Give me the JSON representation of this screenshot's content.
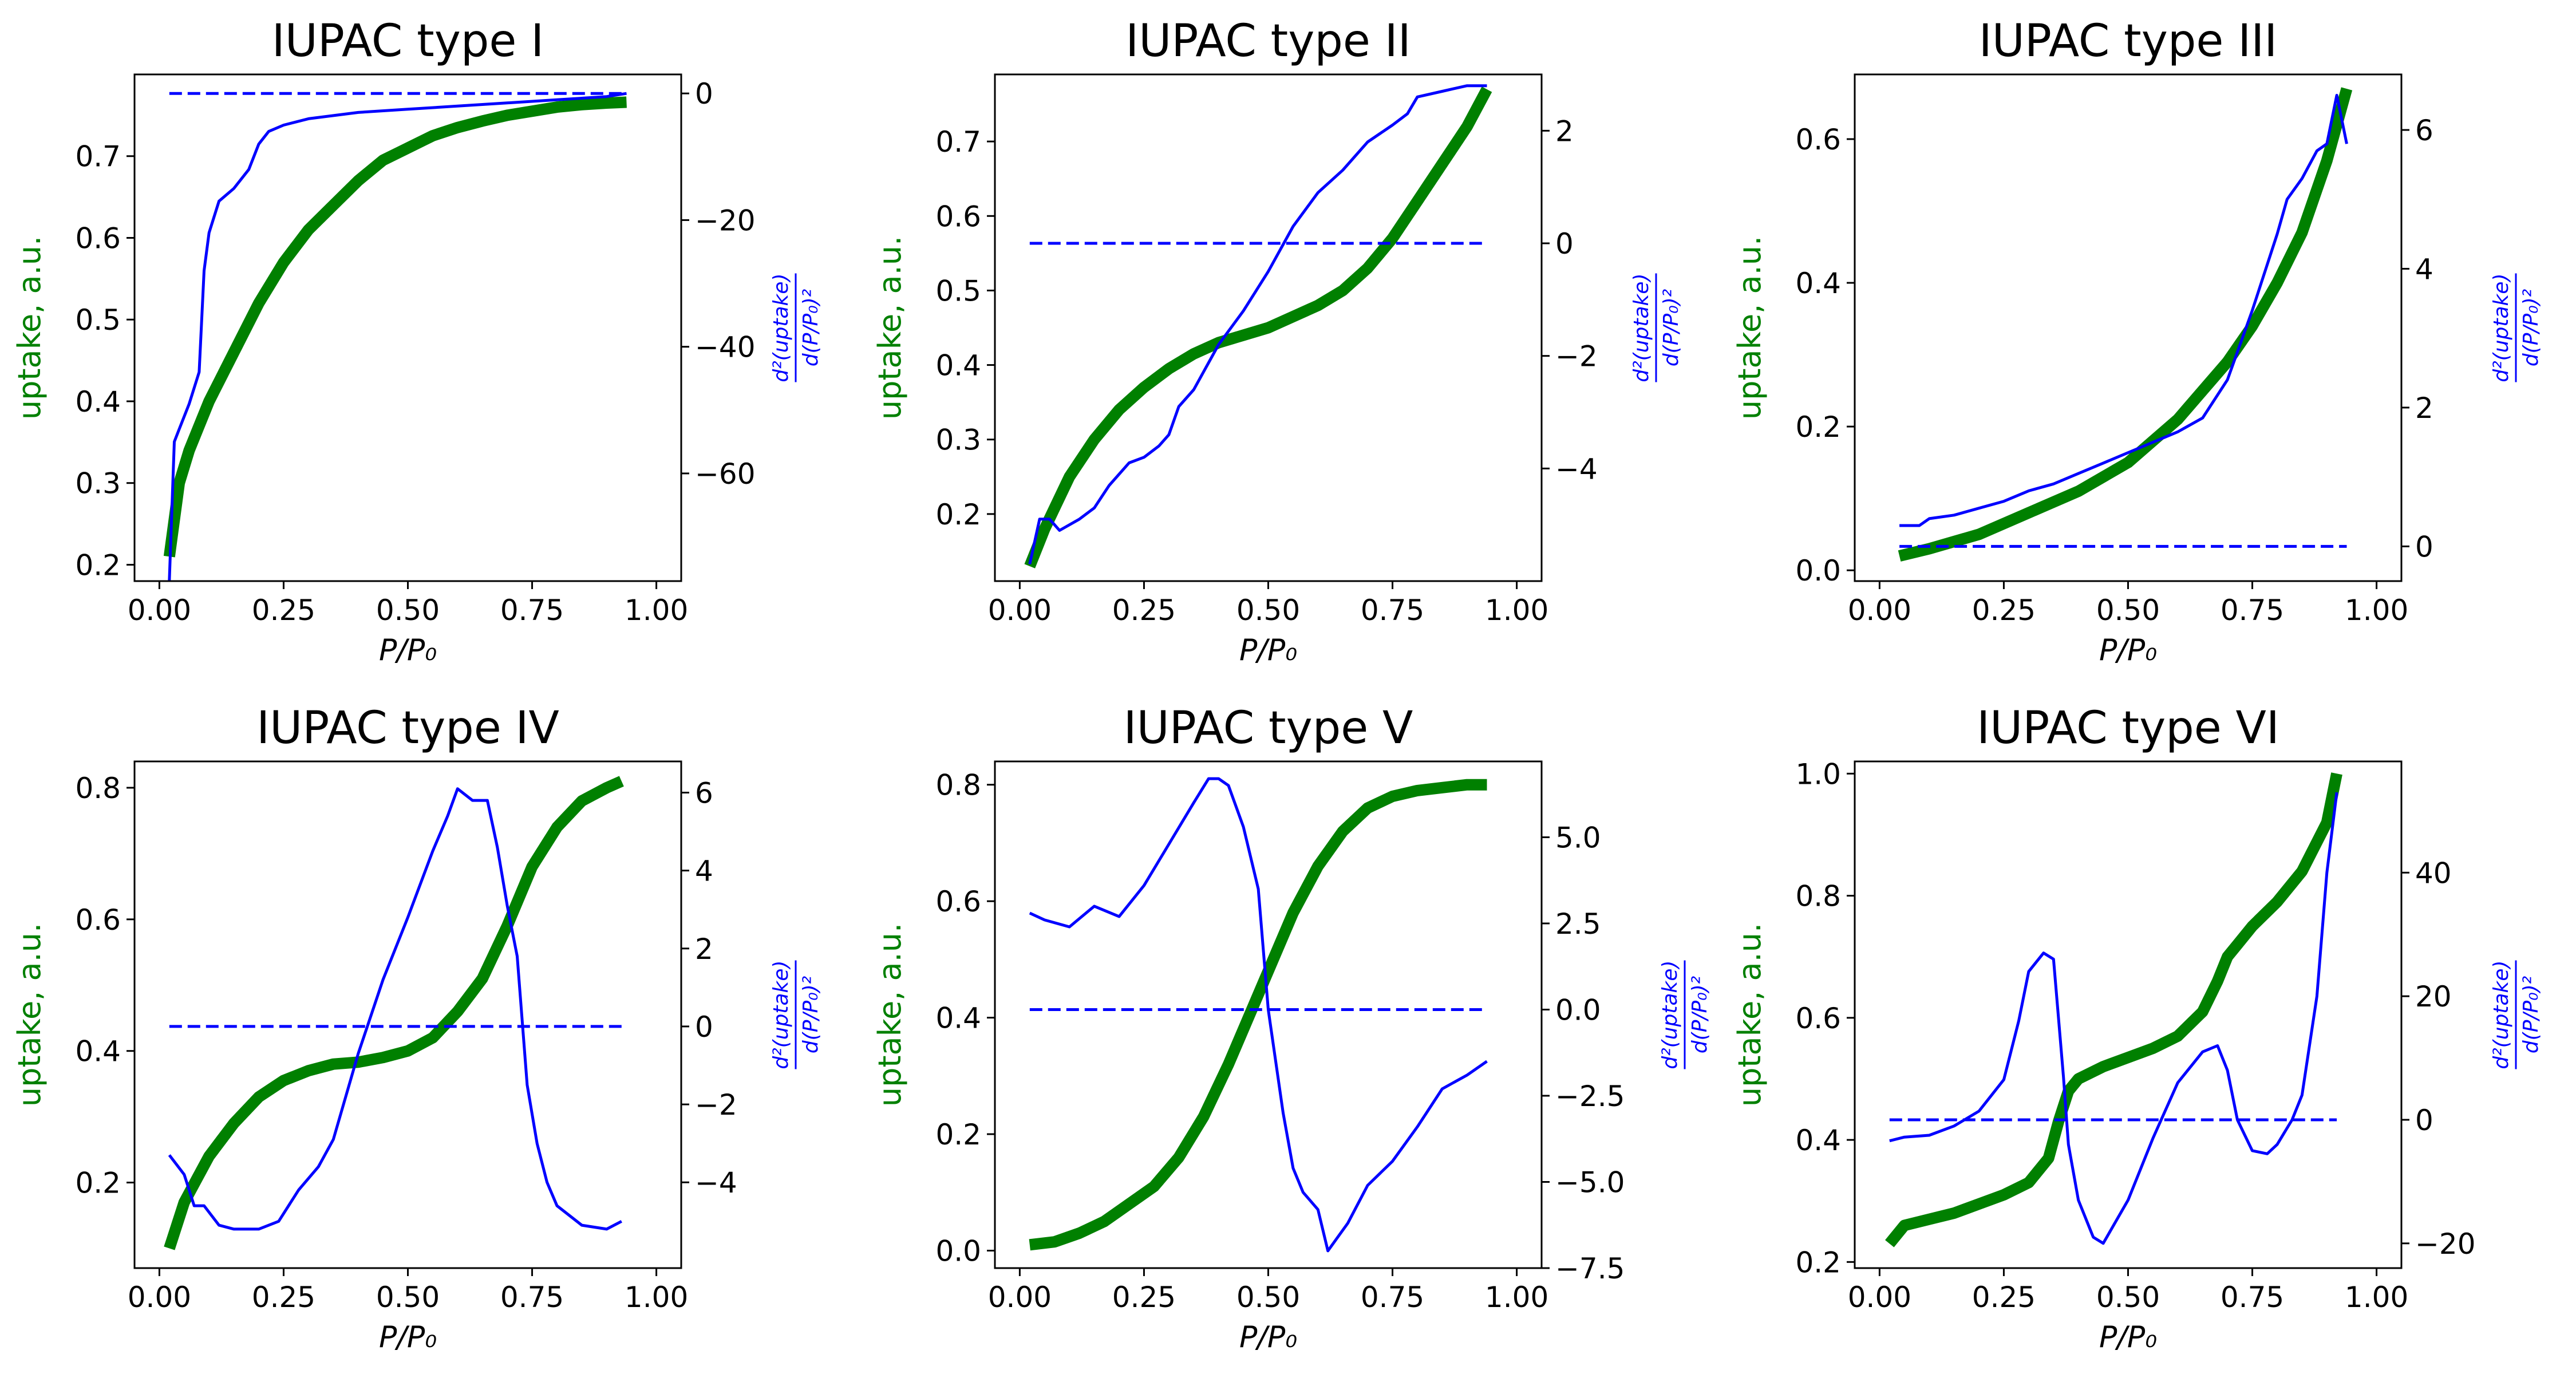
{
  "figure": {
    "left_axis_label": "uptake, a.u.",
    "right_axis_label_num": "d²(uptake)",
    "right_axis_label_den": "d(P/P₀)²",
    "x_axis_label": "P/P₀",
    "colors": {
      "uptake": "#008000",
      "second_derivative": "#0000ff",
      "zero_line": "#0000ff"
    }
  },
  "chart_data": [
    {
      "type": "line",
      "title": "IUPAC type I",
      "xlabel": "P/P₀",
      "ylabel": "uptake, a.u.",
      "ylabel_right": "d²(uptake)/d(P/P₀)²",
      "xlim": [
        -0.05,
        1.05
      ],
      "ylim": [
        0.18,
        0.8
      ],
      "ylim_right": [
        -77,
        3
      ],
      "xticks": [
        "0.00",
        "0.25",
        "0.50",
        "0.75",
        "1.00"
      ],
      "yticks": [
        "0.2",
        "0.3",
        "0.4",
        "0.5",
        "0.6",
        "0.7"
      ],
      "yticks_right": [
        "−60",
        "−40",
        "−20",
        "0"
      ],
      "series": [
        {
          "name": "uptake",
          "axis": "left",
          "x": [
            0.02,
            0.04,
            0.06,
            0.1,
            0.15,
            0.2,
            0.25,
            0.3,
            0.35,
            0.4,
            0.45,
            0.5,
            0.55,
            0.6,
            0.65,
            0.7,
            0.75,
            0.8,
            0.85,
            0.9,
            0.94
          ],
          "y": [
            0.21,
            0.3,
            0.34,
            0.4,
            0.46,
            0.52,
            0.57,
            0.61,
            0.64,
            0.67,
            0.695,
            0.71,
            0.725,
            0.735,
            0.743,
            0.75,
            0.755,
            0.76,
            0.763,
            0.765,
            0.766
          ]
        },
        {
          "name": "second derivative",
          "axis": "right",
          "x": [
            0.02,
            0.03,
            0.04,
            0.06,
            0.08,
            0.09,
            0.1,
            0.12,
            0.15,
            0.18,
            0.2,
            0.22,
            0.25,
            0.3,
            0.35,
            0.4,
            0.5,
            0.6,
            0.7,
            0.8,
            0.9,
            0.94
          ],
          "y": [
            -77,
            -55,
            -53,
            -49,
            -44,
            -28,
            -22,
            -17,
            -15,
            -12,
            -8,
            -6,
            -5,
            -4,
            -3.5,
            -3,
            -2.5,
            -2,
            -1.5,
            -1,
            -0.5,
            0
          ]
        },
        {
          "name": "zero",
          "axis": "right",
          "style": "dashed",
          "x": [
            0.02,
            0.94
          ],
          "y": [
            0,
            0
          ]
        }
      ]
    },
    {
      "type": "line",
      "title": "IUPAC type II",
      "xlabel": "P/P₀",
      "ylabel": "uptake, a.u.",
      "ylabel_right": "d²(uptake)/d(P/P₀)²",
      "xlim": [
        -0.05,
        1.05
      ],
      "ylim": [
        0.11,
        0.79
      ],
      "ylim_right": [
        -6,
        3
      ],
      "xticks": [
        "0.00",
        "0.25",
        "0.50",
        "0.75",
        "1.00"
      ],
      "yticks": [
        "0.2",
        "0.3",
        "0.4",
        "0.5",
        "0.6",
        "0.7"
      ],
      "yticks_right": [
        "−4",
        "−2",
        "0",
        "2"
      ],
      "series": [
        {
          "name": "uptake",
          "axis": "left",
          "x": [
            0.02,
            0.05,
            0.1,
            0.15,
            0.2,
            0.25,
            0.3,
            0.35,
            0.4,
            0.45,
            0.5,
            0.55,
            0.6,
            0.65,
            0.7,
            0.75,
            0.8,
            0.85,
            0.9,
            0.94
          ],
          "y": [
            0.13,
            0.18,
            0.25,
            0.3,
            0.34,
            0.37,
            0.395,
            0.415,
            0.43,
            0.44,
            0.45,
            0.465,
            0.48,
            0.5,
            0.53,
            0.57,
            0.62,
            0.67,
            0.72,
            0.77
          ]
        },
        {
          "name": "second derivative",
          "axis": "right",
          "x": [
            0.02,
            0.04,
            0.06,
            0.08,
            0.12,
            0.15,
            0.18,
            0.22,
            0.25,
            0.28,
            0.3,
            0.32,
            0.35,
            0.4,
            0.45,
            0.5,
            0.55,
            0.6,
            0.65,
            0.7,
            0.75,
            0.78,
            0.8,
            0.85,
            0.9,
            0.94
          ],
          "y": [
            -5.7,
            -4.9,
            -4.9,
            -5.1,
            -4.9,
            -4.7,
            -4.3,
            -3.9,
            -3.8,
            -3.6,
            -3.4,
            -2.9,
            -2.6,
            -1.8,
            -1.2,
            -0.5,
            0.3,
            0.9,
            1.3,
            1.8,
            2.1,
            2.3,
            2.6,
            2.7,
            2.8,
            2.8
          ]
        },
        {
          "name": "zero",
          "axis": "right",
          "style": "dashed",
          "x": [
            0.02,
            0.94
          ],
          "y": [
            0,
            0
          ]
        }
      ]
    },
    {
      "type": "line",
      "title": "IUPAC type III",
      "xlabel": "P/P₀",
      "ylabel": "uptake, a.u.",
      "ylabel_right": "d²(uptake)/d(P/P₀)²",
      "xlim": [
        -0.05,
        1.05
      ],
      "ylim": [
        -0.015,
        0.69
      ],
      "ylim_right": [
        -0.5,
        6.8
      ],
      "xticks": [
        "0.00",
        "0.25",
        "0.50",
        "0.75",
        "1.00"
      ],
      "yticks": [
        "0.0",
        "0.2",
        "0.4",
        "0.6"
      ],
      "yticks_right": [
        "0",
        "2",
        "4",
        "6"
      ],
      "series": [
        {
          "name": "uptake",
          "axis": "left",
          "x": [
            0.04,
            0.1,
            0.2,
            0.3,
            0.4,
            0.5,
            0.55,
            0.6,
            0.65,
            0.7,
            0.75,
            0.8,
            0.85,
            0.9,
            0.94
          ],
          "y": [
            0.02,
            0.03,
            0.05,
            0.08,
            0.11,
            0.15,
            0.18,
            0.21,
            0.25,
            0.29,
            0.34,
            0.4,
            0.47,
            0.57,
            0.67
          ]
        },
        {
          "name": "second derivative",
          "axis": "right",
          "x": [
            0.04,
            0.08,
            0.1,
            0.15,
            0.2,
            0.25,
            0.3,
            0.35,
            0.4,
            0.45,
            0.5,
            0.55,
            0.6,
            0.65,
            0.7,
            0.75,
            0.8,
            0.82,
            0.85,
            0.88,
            0.9,
            0.92,
            0.94
          ],
          "y": [
            0.3,
            0.3,
            0.4,
            0.45,
            0.55,
            0.65,
            0.8,
            0.9,
            1.05,
            1.2,
            1.35,
            1.5,
            1.65,
            1.85,
            2.4,
            3.4,
            4.5,
            5.0,
            5.3,
            5.7,
            5.8,
            6.5,
            5.8
          ]
        },
        {
          "name": "zero",
          "axis": "right",
          "style": "dashed",
          "x": [
            0.04,
            0.94
          ],
          "y": [
            0,
            0
          ]
        }
      ]
    },
    {
      "type": "line",
      "title": "IUPAC type IV",
      "xlabel": "P/P₀",
      "ylabel": "uptake, a.u.",
      "ylabel_right": "d²(uptake)/d(P/P₀)²",
      "xlim": [
        -0.05,
        1.05
      ],
      "ylim": [
        0.07,
        0.84
      ],
      "ylim_right": [
        -6.2,
        6.8
      ],
      "xticks": [
        "0.00",
        "0.25",
        "0.50",
        "0.75",
        "1.00"
      ],
      "yticks": [
        "0.2",
        "0.4",
        "0.6",
        "0.8"
      ],
      "yticks_right": [
        "−4",
        "−2",
        "0",
        "2",
        "4",
        "6"
      ],
      "series": [
        {
          "name": "uptake",
          "axis": "left",
          "x": [
            0.02,
            0.05,
            0.1,
            0.15,
            0.2,
            0.25,
            0.3,
            0.35,
            0.4,
            0.45,
            0.5,
            0.55,
            0.6,
            0.65,
            0.7,
            0.75,
            0.8,
            0.85,
            0.9,
            0.93
          ],
          "y": [
            0.1,
            0.17,
            0.24,
            0.29,
            0.33,
            0.355,
            0.37,
            0.38,
            0.383,
            0.39,
            0.4,
            0.42,
            0.46,
            0.51,
            0.59,
            0.68,
            0.74,
            0.78,
            0.8,
            0.81
          ]
        },
        {
          "name": "second derivative",
          "axis": "right",
          "x": [
            0.02,
            0.05,
            0.07,
            0.09,
            0.12,
            0.15,
            0.2,
            0.24,
            0.28,
            0.32,
            0.35,
            0.4,
            0.45,
            0.5,
            0.55,
            0.58,
            0.6,
            0.63,
            0.66,
            0.68,
            0.7,
            0.72,
            0.74,
            0.76,
            0.78,
            0.8,
            0.85,
            0.9,
            0.93
          ],
          "y": [
            -3.3,
            -3.8,
            -4.6,
            -4.6,
            -5.1,
            -5.2,
            -5.2,
            -5.0,
            -4.2,
            -3.6,
            -2.9,
            -0.7,
            1.2,
            2.8,
            4.5,
            5.4,
            6.1,
            5.8,
            5.8,
            4.6,
            3.1,
            1.8,
            -1.5,
            -3.0,
            -4.0,
            -4.6,
            -5.1,
            -5.2,
            -5.0
          ]
        },
        {
          "name": "zero",
          "axis": "right",
          "style": "dashed",
          "x": [
            0.02,
            0.93
          ],
          "y": [
            0,
            0
          ]
        }
      ]
    },
    {
      "type": "line",
      "title": "IUPAC type V",
      "xlabel": "P/P₀",
      "ylabel": "uptake, a.u.",
      "ylabel_right": "d²(uptake)/d(P/P₀)²",
      "xlim": [
        -0.05,
        1.05
      ],
      "ylim": [
        -0.03,
        0.84
      ],
      "ylim_right": [
        -7.5,
        7.2
      ],
      "xticks": [
        "0.00",
        "0.25",
        "0.50",
        "0.75",
        "1.00"
      ],
      "yticks": [
        "0.0",
        "0.2",
        "0.4",
        "0.6",
        "0.8"
      ],
      "yticks_right": [
        "−7.5",
        "−5.0",
        "−2.5",
        "0.0",
        "2.5",
        "5.0"
      ],
      "series": [
        {
          "name": "uptake",
          "axis": "left",
          "x": [
            0.02,
            0.07,
            0.12,
            0.17,
            0.22,
            0.27,
            0.32,
            0.37,
            0.42,
            0.47,
            0.5,
            0.55,
            0.6,
            0.65,
            0.7,
            0.75,
            0.8,
            0.85,
            0.9,
            0.94
          ],
          "y": [
            0.01,
            0.015,
            0.03,
            0.05,
            0.08,
            0.11,
            0.16,
            0.23,
            0.32,
            0.42,
            0.48,
            0.58,
            0.66,
            0.72,
            0.76,
            0.78,
            0.79,
            0.795,
            0.8,
            0.8
          ]
        },
        {
          "name": "second derivative",
          "axis": "right",
          "x": [
            0.02,
            0.05,
            0.1,
            0.15,
            0.2,
            0.25,
            0.3,
            0.35,
            0.38,
            0.4,
            0.42,
            0.45,
            0.48,
            0.5,
            0.53,
            0.55,
            0.57,
            0.6,
            0.62,
            0.64,
            0.66,
            0.7,
            0.75,
            0.8,
            0.85,
            0.9,
            0.94
          ],
          "y": [
            2.8,
            2.6,
            2.4,
            3.0,
            2.7,
            3.6,
            4.8,
            6.0,
            6.7,
            6.7,
            6.5,
            5.3,
            3.5,
            0.0,
            -3.0,
            -4.6,
            -5.3,
            -5.8,
            -7.0,
            -6.6,
            -6.2,
            -5.1,
            -4.4,
            -3.4,
            -2.3,
            -1.9,
            -1.5
          ]
        },
        {
          "name": "zero",
          "axis": "right",
          "style": "dashed",
          "x": [
            0.02,
            0.94
          ],
          "y": [
            0,
            0
          ]
        }
      ]
    },
    {
      "type": "line",
      "title": "IUPAC type VI",
      "xlabel": "P/P₀",
      "ylabel": "uptake, a.u.",
      "ylabel_right": "d²(uptake)/d(P/P₀)²",
      "xlim": [
        -0.05,
        1.05
      ],
      "ylim": [
        0.19,
        1.02
      ],
      "ylim_right": [
        -24,
        58
      ],
      "xticks": [
        "0.00",
        "0.25",
        "0.50",
        "0.75",
        "1.00"
      ],
      "yticks": [
        "0.2",
        "0.4",
        "0.6",
        "0.8",
        "1.0"
      ],
      "yticks_right": [
        "−20",
        "0",
        "20",
        "40"
      ],
      "series": [
        {
          "name": "uptake",
          "axis": "left",
          "x": [
            0.02,
            0.05,
            0.1,
            0.15,
            0.2,
            0.25,
            0.3,
            0.34,
            0.36,
            0.38,
            0.4,
            0.45,
            0.5,
            0.55,
            0.6,
            0.65,
            0.68,
            0.7,
            0.72,
            0.75,
            0.8,
            0.85,
            0.9,
            0.92
          ],
          "y": [
            0.23,
            0.26,
            0.27,
            0.28,
            0.295,
            0.31,
            0.33,
            0.37,
            0.43,
            0.48,
            0.5,
            0.52,
            0.535,
            0.55,
            0.57,
            0.61,
            0.66,
            0.7,
            0.72,
            0.75,
            0.79,
            0.84,
            0.92,
            1.0
          ]
        },
        {
          "name": "second derivative",
          "axis": "right",
          "x": [
            0.02,
            0.05,
            0.1,
            0.15,
            0.2,
            0.25,
            0.28,
            0.3,
            0.33,
            0.35,
            0.37,
            0.38,
            0.4,
            0.43,
            0.45,
            0.5,
            0.55,
            0.6,
            0.65,
            0.68,
            0.7,
            0.72,
            0.75,
            0.78,
            0.8,
            0.83,
            0.85,
            0.88,
            0.9,
            0.92
          ],
          "y": [
            -3.4,
            -2.8,
            -2.5,
            -1.0,
            1.4,
            6.5,
            16.0,
            24.0,
            27.0,
            26.0,
            7.0,
            -4.0,
            -13.0,
            -19.0,
            -20.0,
            -13.0,
            -3.0,
            6.0,
            11.0,
            12.0,
            8.0,
            0.0,
            -5.0,
            -5.5,
            -4.0,
            0.0,
            4.0,
            20.0,
            40.0,
            53.0
          ]
        },
        {
          "name": "zero",
          "axis": "right",
          "style": "dashed",
          "x": [
            0.02,
            0.92
          ],
          "y": [
            0,
            0
          ]
        }
      ]
    }
  ]
}
